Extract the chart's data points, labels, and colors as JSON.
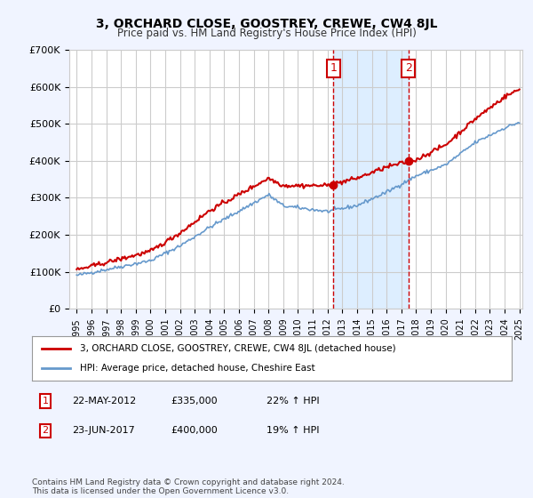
{
  "title": "3, ORCHARD CLOSE, GOOSTREY, CREWE, CW4 8JL",
  "subtitle": "Price paid vs. HM Land Registry's House Price Index (HPI)",
  "background_color": "#f0f4ff",
  "plot_bg_color": "#ffffff",
  "ylabel_color": "#000000",
  "red_line_label": "3, ORCHARD CLOSE, GOOSTREY, CREWE, CW4 8JL (detached house)",
  "blue_line_label": "HPI: Average price, detached house, Cheshire East",
  "annotation1_label": "1",
  "annotation1_date": "22-MAY-2012",
  "annotation1_price": "£335,000",
  "annotation1_hpi": "22% ↑ HPI",
  "annotation2_label": "2",
  "annotation2_date": "23-JUN-2017",
  "annotation2_price": "£400,000",
  "annotation2_hpi": "19% ↑ HPI",
  "footnote": "Contains HM Land Registry data © Crown copyright and database right 2024.\nThis data is licensed under the Open Government Licence v3.0.",
  "xmin_year": 1995,
  "xmax_year": 2025,
  "ymin": 0,
  "ymax": 700000,
  "yticks": [
    0,
    100000,
    200000,
    300000,
    400000,
    500000,
    600000,
    700000
  ],
  "ytick_labels": [
    "£0",
    "£100K",
    "£200K",
    "£300K",
    "£400K",
    "£500K",
    "£600K",
    "£700K"
  ],
  "xticks": [
    1995,
    1996,
    1997,
    1998,
    1999,
    2000,
    2001,
    2002,
    2003,
    2004,
    2005,
    2006,
    2007,
    2008,
    2009,
    2010,
    2011,
    2012,
    2013,
    2014,
    2015,
    2016,
    2017,
    2018,
    2019,
    2020,
    2021,
    2022,
    2023,
    2024,
    2025
  ],
  "vline1_x": 2012.39,
  "vline2_x": 2017.48,
  "sale1_x": 2012.39,
  "sale1_y": 335000,
  "sale2_x": 2017.48,
  "sale2_y": 400000,
  "red_color": "#cc0000",
  "blue_color": "#6699cc",
  "vline_color": "#cc0000",
  "sale_dot_color": "#cc0000",
  "highlight_color": "#ddeeff"
}
